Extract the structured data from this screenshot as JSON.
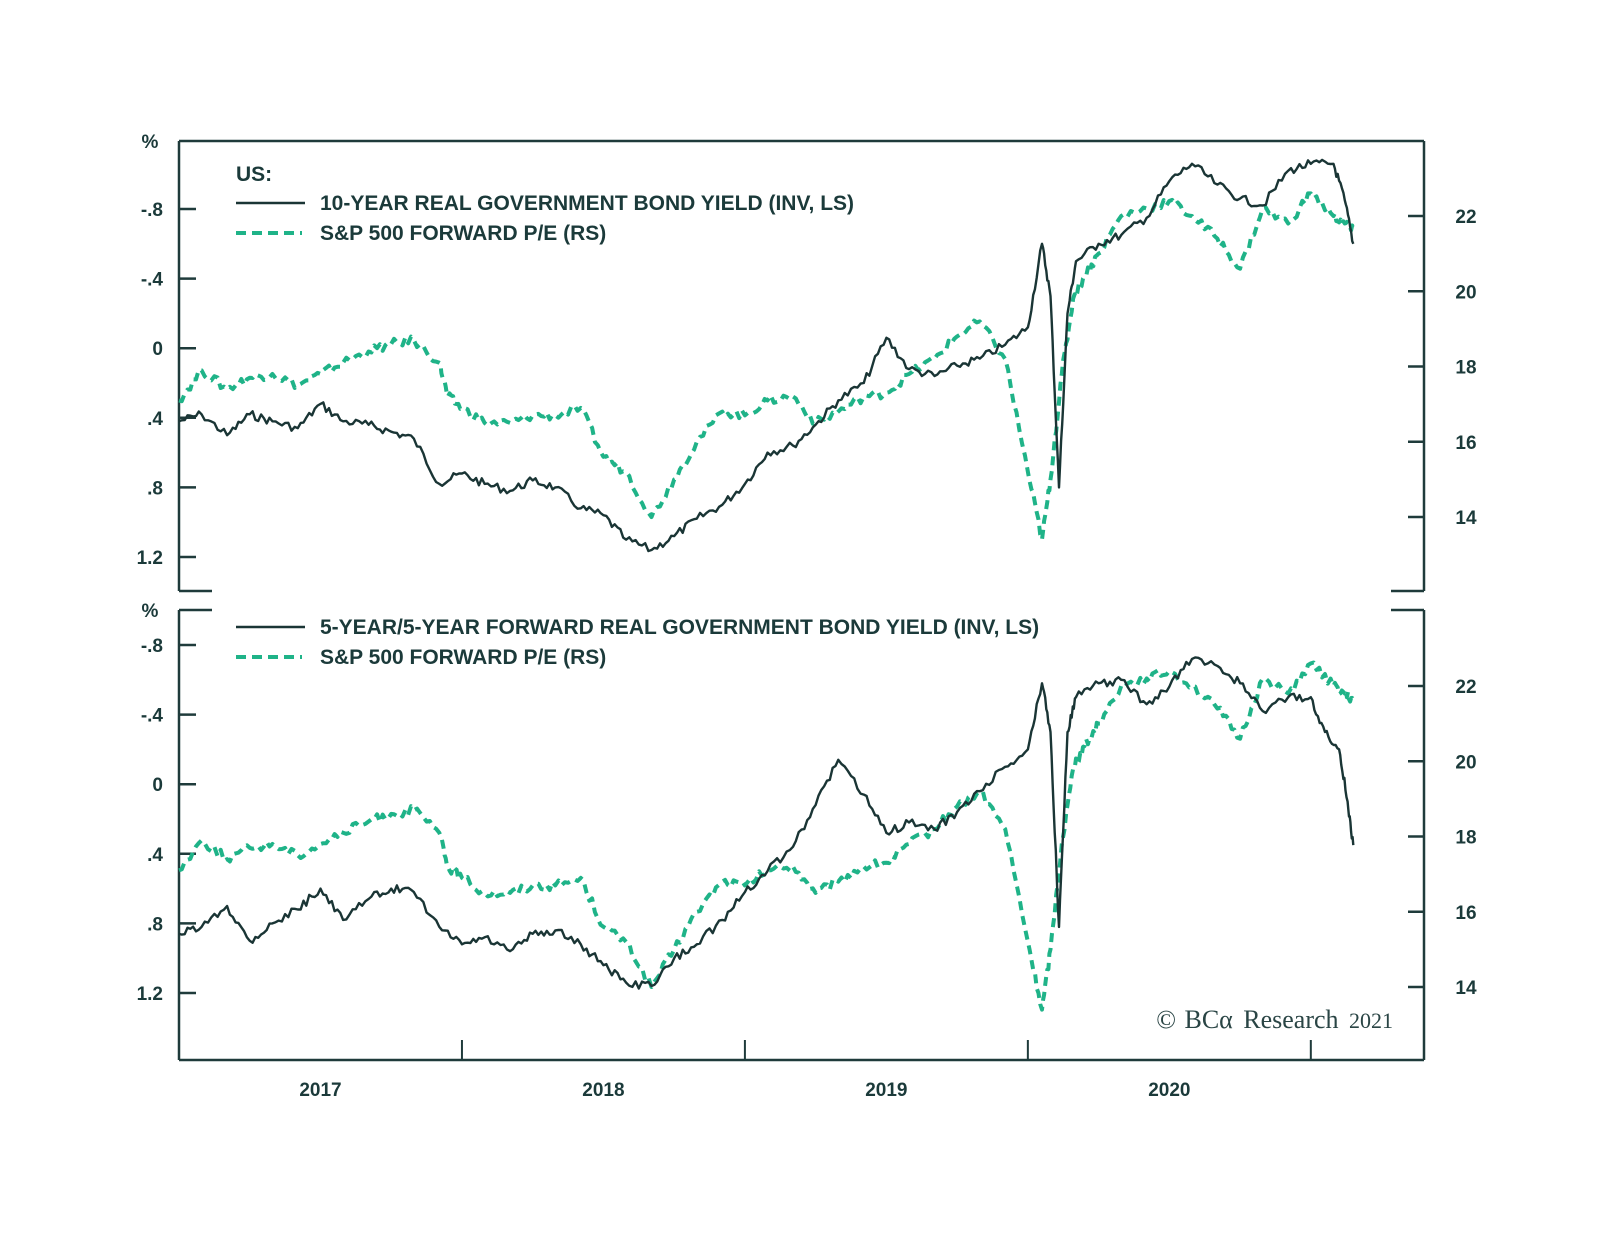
{
  "colors": {
    "axis": "#1f3b3b",
    "yield_line": "#1a3535",
    "pe_line": "#1fb388",
    "text": "#1b3a3a"
  },
  "copyright": {
    "symbol": "©",
    "brand": "BCα",
    "name": "Research",
    "year": "2021"
  },
  "chart_data": [
    {
      "type": "line",
      "panel": "top",
      "title_prefix": "US:",
      "legend_position": "top-left",
      "left_axis_unit": "%",
      "left_axis_inverted": true,
      "left_ylim": [
        1.4,
        -1.0
      ],
      "left_ticks": [
        -0.8,
        -0.4,
        0,
        0.4,
        0.8,
        1.2
      ],
      "left_tick_labels": [
        "-.8",
        "-.4",
        "0",
        ".4",
        ".8",
        "1.2"
      ],
      "right_ylim": [
        12.0,
        24.0
      ],
      "right_ticks": [
        14,
        16,
        18,
        20,
        22
      ],
      "right_tick_labels": [
        "14",
        "16",
        "18",
        "20",
        "22"
      ],
      "x_range": [
        2016.5,
        2020.9
      ],
      "x_ticks_major": [
        2017.5,
        2018.5,
        2019.5,
        2020.5
      ],
      "x_tick_labels": [
        "2017",
        "2018",
        "2019",
        "2020"
      ],
      "series": [
        {
          "name": "10-YEAR REAL GOVERNMENT BOND YIELD (INV, LS)",
          "axis": "left",
          "style": "solid",
          "x": [
            2016.5,
            2016.58,
            2016.67,
            2016.75,
            2016.83,
            2016.92,
            2017.0,
            2017.08,
            2017.17,
            2017.25,
            2017.33,
            2017.42,
            2017.5,
            2017.58,
            2017.67,
            2017.75,
            2017.83,
            2017.92,
            2018.0,
            2018.08,
            2018.17,
            2018.25,
            2018.33,
            2018.42,
            2018.5,
            2018.58,
            2018.67,
            2018.75,
            2018.83,
            2018.92,
            2019.0,
            2019.08,
            2019.17,
            2019.25,
            2019.33,
            2019.42,
            2019.5,
            2019.55,
            2019.58,
            2019.61,
            2019.64,
            2019.67,
            2019.75,
            2019.83,
            2019.92,
            2020.0,
            2020.08,
            2020.17,
            2020.25,
            2020.33,
            2020.42,
            2020.5,
            2020.58,
            2020.62,
            2020.65
          ],
          "y": [
            0.42,
            0.38,
            0.5,
            0.38,
            0.42,
            0.46,
            0.32,
            0.42,
            0.44,
            0.48,
            0.52,
            0.78,
            0.72,
            0.78,
            0.82,
            0.76,
            0.8,
            0.92,
            0.96,
            1.1,
            1.16,
            1.08,
            0.98,
            0.9,
            0.78,
            0.6,
            0.56,
            0.44,
            0.3,
            0.2,
            -0.06,
            0.12,
            0.16,
            0.1,
            0.06,
            -0.02,
            -0.12,
            -0.6,
            -0.3,
            0.8,
            -0.2,
            -0.5,
            -0.6,
            -0.65,
            -0.75,
            -0.96,
            -1.06,
            -0.94,
            -0.86,
            -0.82,
            -1.02,
            -1.06,
            -1.06,
            -0.85,
            -0.6
          ]
        },
        {
          "name": "S&P 500 FORWARD P/E (RS)",
          "axis": "right",
          "style": "dashed",
          "x": [
            2016.5,
            2016.58,
            2016.67,
            2016.75,
            2016.83,
            2016.92,
            2017.0,
            2017.08,
            2017.17,
            2017.25,
            2017.33,
            2017.42,
            2017.45,
            2017.5,
            2017.58,
            2017.67,
            2017.75,
            2017.83,
            2017.92,
            2018.0,
            2018.08,
            2018.17,
            2018.25,
            2018.33,
            2018.42,
            2018.5,
            2018.58,
            2018.67,
            2018.75,
            2018.83,
            2018.92,
            2019.0,
            2019.08,
            2019.17,
            2019.25,
            2019.33,
            2019.42,
            2019.5,
            2019.55,
            2019.58,
            2019.62,
            2019.66,
            2019.7,
            2019.75,
            2019.83,
            2019.92,
            2020.0,
            2020.08,
            2020.17,
            2020.25,
            2020.33,
            2020.42,
            2020.5,
            2020.58,
            2020.62,
            2020.65
          ],
          "y": [
            17.1,
            17.9,
            17.4,
            17.7,
            17.8,
            17.5,
            17.8,
            18.1,
            18.4,
            18.6,
            18.7,
            18.1,
            17.2,
            16.9,
            16.5,
            16.5,
            16.7,
            16.7,
            16.9,
            15.6,
            15.2,
            14.0,
            15.0,
            16.0,
            16.8,
            16.7,
            17.1,
            17.2,
            16.5,
            16.8,
            17.2,
            17.3,
            17.8,
            18.2,
            18.8,
            19.2,
            18.2,
            15.2,
            13.4,
            15.0,
            17.8,
            19.8,
            20.4,
            21.0,
            22.0,
            22.2,
            22.4,
            22.0,
            21.4,
            20.6,
            22.2,
            21.8,
            22.6,
            22.0,
            21.8,
            21.6
          ]
        }
      ]
    },
    {
      "type": "line",
      "panel": "bottom",
      "legend_position": "top-left",
      "left_axis_unit": "%",
      "left_axis_inverted": true,
      "left_ylim": [
        1.6,
        -0.95
      ],
      "left_ticks": [
        -0.8,
        -0.4,
        0,
        0.4,
        0.8,
        1.2
      ],
      "left_tick_labels": [
        "-.8",
        "-.4",
        "0",
        ".4",
        ".8",
        "1.2"
      ],
      "right_ylim": [
        12.0,
        24.0
      ],
      "right_ticks": [
        14,
        16,
        18,
        20,
        22
      ],
      "right_tick_labels": [
        "14",
        "16",
        "18",
        "20",
        "22"
      ],
      "x_range": [
        2016.5,
        2020.9
      ],
      "x_ticks_major": [
        2017.5,
        2018.5,
        2019.5,
        2020.5
      ],
      "x_tick_labels": [
        "2017",
        "2018",
        "2019",
        "2020"
      ],
      "series": [
        {
          "name": "5-YEAR/5-YEAR FORWARD REAL GOVERNMENT BOND YIELD (INV, LS)",
          "axis": "left",
          "style": "solid",
          "x": [
            2016.5,
            2016.58,
            2016.67,
            2016.75,
            2016.83,
            2016.92,
            2017.0,
            2017.08,
            2017.17,
            2017.25,
            2017.33,
            2017.42,
            2017.5,
            2017.58,
            2017.67,
            2017.75,
            2017.83,
            2017.92,
            2018.0,
            2018.08,
            2018.17,
            2018.25,
            2018.33,
            2018.42,
            2018.5,
            2018.58,
            2018.67,
            2018.75,
            2018.83,
            2018.92,
            2019.0,
            2019.08,
            2019.17,
            2019.25,
            2019.33,
            2019.42,
            2019.5,
            2019.55,
            2019.58,
            2019.61,
            2019.64,
            2019.67,
            2019.75,
            2019.83,
            2019.92,
            2020.0,
            2020.08,
            2020.17,
            2020.25,
            2020.33,
            2020.42,
            2020.5,
            2020.55,
            2020.6,
            2020.63,
            2020.65
          ],
          "y": [
            0.86,
            0.82,
            0.7,
            0.9,
            0.8,
            0.72,
            0.6,
            0.78,
            0.66,
            0.6,
            0.62,
            0.82,
            0.92,
            0.88,
            0.96,
            0.86,
            0.84,
            0.92,
            1.04,
            1.14,
            1.16,
            1.0,
            0.92,
            0.78,
            0.62,
            0.5,
            0.36,
            0.12,
            -0.14,
            0.06,
            0.28,
            0.22,
            0.26,
            0.16,
            0.04,
            -0.1,
            -0.2,
            -0.58,
            -0.3,
            0.82,
            -0.3,
            -0.5,
            -0.58,
            -0.6,
            -0.46,
            -0.56,
            -0.72,
            -0.68,
            -0.58,
            -0.42,
            -0.5,
            -0.5,
            -0.3,
            -0.2,
            0.1,
            0.35
          ]
        },
        {
          "name": "S&P 500 FORWARD P/E (RS)",
          "axis": "right",
          "style": "dashed",
          "x": [
            2016.5,
            2016.58,
            2016.67,
            2016.75,
            2016.83,
            2016.92,
            2017.0,
            2017.08,
            2017.17,
            2017.25,
            2017.33,
            2017.42,
            2017.45,
            2017.5,
            2017.58,
            2017.67,
            2017.75,
            2017.83,
            2017.92,
            2018.0,
            2018.08,
            2018.17,
            2018.25,
            2018.33,
            2018.42,
            2018.5,
            2018.58,
            2018.67,
            2018.75,
            2018.83,
            2018.92,
            2019.0,
            2019.08,
            2019.17,
            2019.25,
            2019.33,
            2019.42,
            2019.5,
            2019.55,
            2019.58,
            2019.62,
            2019.66,
            2019.7,
            2019.75,
            2019.83,
            2019.92,
            2020.0,
            2020.08,
            2020.17,
            2020.25,
            2020.33,
            2020.42,
            2020.5,
            2020.58,
            2020.62,
            2020.65
          ],
          "y": [
            17.1,
            17.9,
            17.4,
            17.7,
            17.8,
            17.5,
            17.8,
            18.1,
            18.4,
            18.6,
            18.7,
            18.1,
            17.2,
            16.9,
            16.5,
            16.5,
            16.7,
            16.7,
            16.9,
            15.6,
            15.2,
            14.0,
            15.0,
            16.0,
            16.8,
            16.7,
            17.1,
            17.2,
            16.5,
            16.8,
            17.2,
            17.3,
            17.8,
            18.2,
            18.8,
            19.2,
            18.2,
            15.2,
            13.4,
            15.0,
            17.8,
            19.8,
            20.4,
            21.0,
            22.0,
            22.2,
            22.4,
            22.0,
            21.4,
            20.6,
            22.2,
            21.8,
            22.6,
            22.0,
            21.8,
            21.6
          ]
        }
      ]
    }
  ]
}
